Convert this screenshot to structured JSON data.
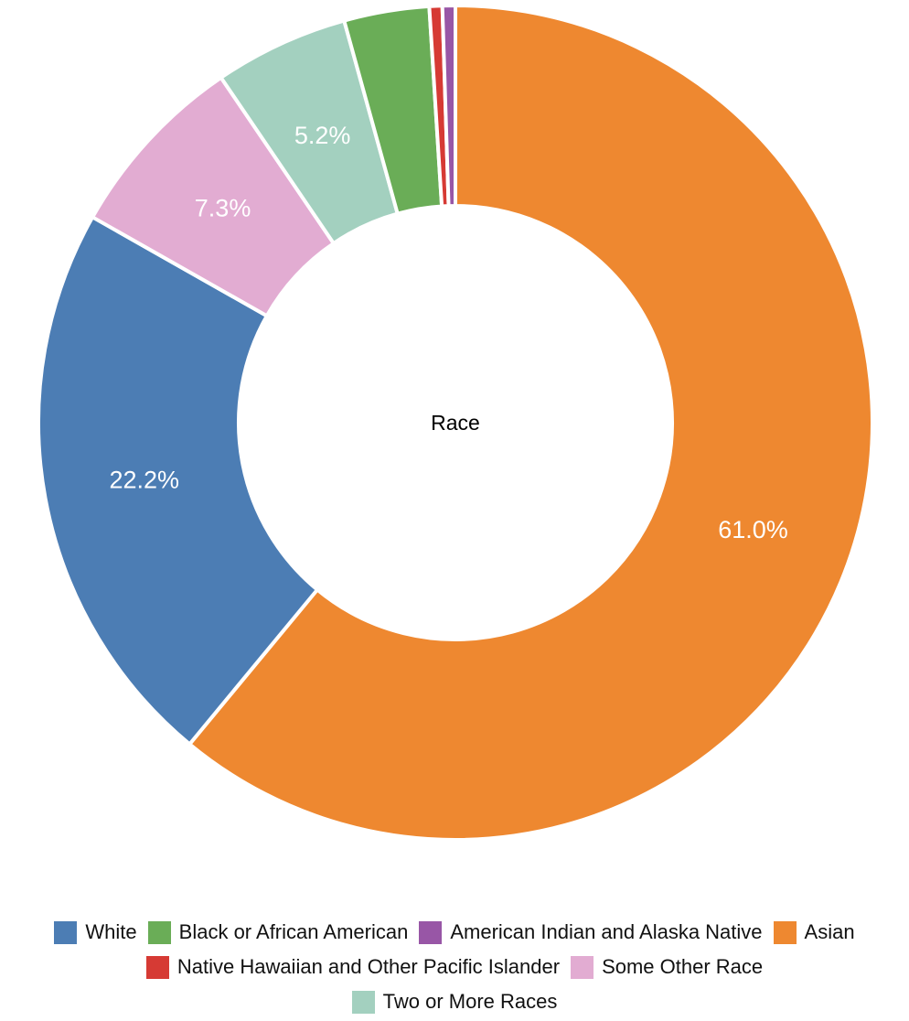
{
  "chart_data": {
    "type": "pie",
    "donut": true,
    "center_label": "Race",
    "slices": [
      {
        "name": "White",
        "value": 22.2,
        "label": "22.2%",
        "color": "#4c7db4"
      },
      {
        "name": "Black or African American",
        "value": 3.3,
        "label": "",
        "color": "#6aad57"
      },
      {
        "name": "American Indian and Alaska Native",
        "value": 0.5,
        "label": "",
        "color": "#9856a6"
      },
      {
        "name": "Asian",
        "value": 61.0,
        "label": "61.0%",
        "color": "#ee8830"
      },
      {
        "name": "Native Hawaiian and Other Pacific Islander",
        "value": 0.5,
        "label": "",
        "color": "#d63a34"
      },
      {
        "name": "Some Other Race",
        "value": 7.3,
        "label": "7.3%",
        "color": "#e2acd2"
      },
      {
        "name": "Two or More Races",
        "value": 5.2,
        "label": "5.2%",
        "color": "#a3d0bf"
      }
    ],
    "draw_order": [
      "Asian",
      "White",
      "Some Other Race",
      "Two or More Races",
      "Black or African American",
      "Native Hawaiian and Other Pacific Islander",
      "American Indian and Alaska Native"
    ],
    "legend_rows": [
      [
        "White",
        "Black or African American",
        "American Indian and Alaska Native",
        "Asian"
      ],
      [
        "Native Hawaiian and Other Pacific Islander",
        "Some Other Race"
      ],
      [
        "Two or More Races"
      ]
    ],
    "legend_position": "bottom"
  }
}
